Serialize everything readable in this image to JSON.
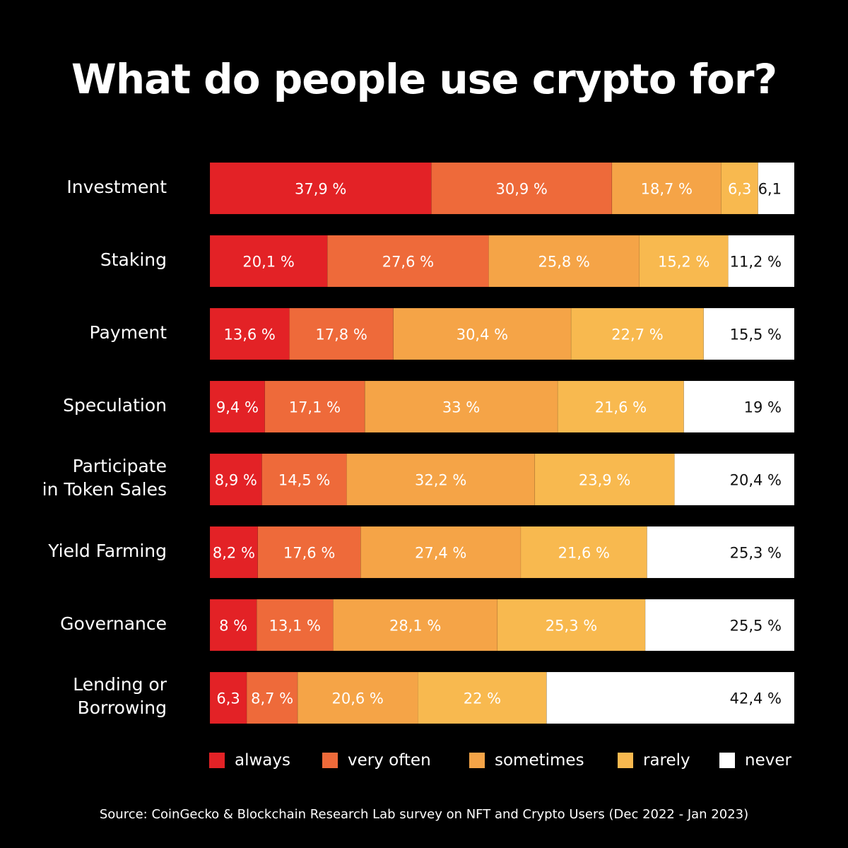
{
  "title": "What do people use crypto for?",
  "source": "Source: CoinGecko & Blockchain Research Lab survey on NFT and Crypto Users (Dec 2022 - Jan 2023)",
  "colors": {
    "always": "#e32226",
    "very_often": "#ee6a3a",
    "sometimes": "#f5a447",
    "rarely": "#f8b94f",
    "never": "#ffffff",
    "text_on_color": "#ffffff",
    "text_on_white": "#111111"
  },
  "legend": [
    {
      "key": "always",
      "label": "always"
    },
    {
      "key": "very_often",
      "label": "very often"
    },
    {
      "key": "sometimes",
      "label": "sometimes"
    },
    {
      "key": "rarely",
      "label": "rarely"
    },
    {
      "key": "never",
      "label": "never"
    }
  ],
  "chart_data": {
    "type": "bar",
    "orientation": "horizontal",
    "stacked": true,
    "title": "What do people use crypto for?",
    "categories": [
      "Investment",
      "Staking",
      "Payment",
      "Speculation",
      "Participate in Token Sales",
      "Yield Farming",
      "Governance",
      "Lending or Borrowing"
    ],
    "series": [
      {
        "name": "always",
        "key": "always",
        "values": [
          37.9,
          20.1,
          13.6,
          9.4,
          8.9,
          8.2,
          8,
          6.3
        ],
        "labels": [
          "37,9 %",
          "20,1 %",
          "13,6 %",
          "9,4 %",
          "8,9 %",
          "8,2 %",
          "8 %",
          "6,3"
        ]
      },
      {
        "name": "very often",
        "key": "very_often",
        "values": [
          30.9,
          27.6,
          17.8,
          17.1,
          14.5,
          17.6,
          13.1,
          8.7
        ],
        "labels": [
          "30,9 %",
          "27,6 %",
          "17,8 %",
          "17,1 %",
          "14,5 %",
          "17,6 %",
          "13,1 %",
          "8,7 %"
        ]
      },
      {
        "name": "sometimes",
        "key": "sometimes",
        "values": [
          18.7,
          25.8,
          30.4,
          33,
          32.2,
          27.4,
          28.1,
          20.6
        ],
        "labels": [
          "18,7 %",
          "25,8 %",
          "30,4 %",
          "33 %",
          "32,2 %",
          "27,4 %",
          "28,1 %",
          "20,6 %"
        ]
      },
      {
        "name": "rarely",
        "key": "rarely",
        "values": [
          6.3,
          15.2,
          22.7,
          21.6,
          23.9,
          21.6,
          25.3,
          22
        ],
        "labels": [
          "6,3",
          "15,2 %",
          "22,7 %",
          "21,6 %",
          "23,9 %",
          "21,6 %",
          "25,3 %",
          "22 %"
        ]
      },
      {
        "name": "never",
        "key": "never",
        "values": [
          6.1,
          11.2,
          15.5,
          19,
          20.4,
          25.3,
          25.5,
          42.4
        ],
        "labels": [
          "6,1",
          "11,2 %",
          "15,5 %",
          "19 %",
          "20,4 %",
          "25,3 %",
          "25,5 %",
          "42,4 %"
        ]
      }
    ],
    "xlim": [
      0,
      100
    ],
    "legend_position": "bottom",
    "grid": false
  }
}
